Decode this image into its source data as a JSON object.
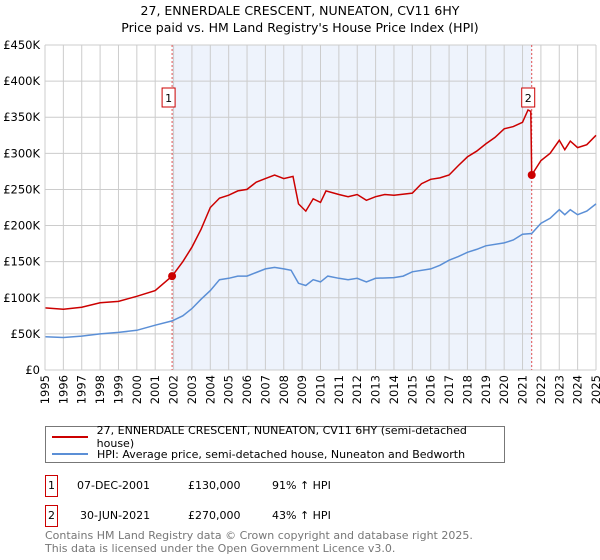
{
  "title": "27, ENNERDALE CRESCENT, NUNEATON, CV11 6HY",
  "subtitle": "Price paid vs. HM Land Registry's House Price Index (HPI)",
  "colors": {
    "property": "#cc0000",
    "hpi": "#5b8fd6",
    "shade": "#eef3fc"
  },
  "chart_data": {
    "type": "line",
    "title": "27, ENNERDALE CRESCENT, NUNEATON, CV11 6HY",
    "subtitle": "Price paid vs. HM Land Registry's House Price Index (HPI)",
    "xlim": [
      1995,
      2025
    ],
    "ylim": [
      0,
      450000
    ],
    "x_ticks": [
      "1995",
      "1996",
      "1997",
      "1998",
      "1999",
      "2000",
      "2001",
      "2002",
      "2003",
      "2004",
      "2005",
      "2006",
      "2007",
      "2008",
      "2009",
      "2010",
      "2011",
      "2012",
      "2013",
      "2014",
      "2015",
      "2016",
      "2017",
      "2018",
      "2019",
      "2020",
      "2021",
      "2022",
      "2023",
      "2024",
      "2025"
    ],
    "y_ticks": [
      {
        "v": 0,
        "l": "£0"
      },
      {
        "v": 50000,
        "l": "£50K"
      },
      {
        "v": 100000,
        "l": "£100K"
      },
      {
        "v": 150000,
        "l": "£150K"
      },
      {
        "v": 200000,
        "l": "£200K"
      },
      {
        "v": 250000,
        "l": "£250K"
      },
      {
        "v": 300000,
        "l": "£300K"
      },
      {
        "v": 350000,
        "l": "£350K"
      },
      {
        "v": 400000,
        "l": "£400K"
      },
      {
        "v": 450000,
        "l": "£450K"
      }
    ],
    "grid": true,
    "shaded_range": [
      2001.92,
      2021.5
    ],
    "series": [
      {
        "name": "27, ENNERDALE CRESCENT, NUNEATON, CV11 6HY (semi-detached house)",
        "color": "#cc0000",
        "x": [
          1995,
          1996,
          1997,
          1998,
          1999,
          2000,
          2001,
          2001.92,
          2002.5,
          2003,
          2003.5,
          2004,
          2004.5,
          2005,
          2005.5,
          2006,
          2006.5,
          2007,
          2007.5,
          2008,
          2008.5,
          2008.8,
          2009.2,
          2009.6,
          2010,
          2010.3,
          2011,
          2011.5,
          2012,
          2012.5,
          2013,
          2013.5,
          2014,
          2015,
          2015.5,
          2016,
          2016.5,
          2017,
          2017.5,
          2018,
          2018.5,
          2019,
          2019.5,
          2020,
          2020.5,
          2021,
          2021.3,
          2021.45,
          2021.5,
          2022,
          2022.5,
          2023,
          2023.3,
          2023.6,
          2024,
          2024.5,
          2025
        ],
        "y": [
          86000,
          84000,
          87000,
          93000,
          95000,
          102000,
          110000,
          130000,
          150000,
          170000,
          195000,
          225000,
          238000,
          242000,
          248000,
          250000,
          260000,
          265000,
          270000,
          265000,
          268000,
          230000,
          220000,
          237000,
          232000,
          248000,
          243000,
          240000,
          243000,
          235000,
          240000,
          243000,
          242000,
          245000,
          258000,
          264000,
          266000,
          270000,
          283000,
          295000,
          303000,
          313000,
          322000,
          334000,
          337000,
          343000,
          360000,
          358000,
          270000,
          290000,
          300000,
          318000,
          305000,
          317000,
          308000,
          312000,
          325000
        ]
      },
      {
        "name": "HPI: Average price, semi-detached house, Nuneaton and Bedworth",
        "color": "#5b8fd6",
        "x": [
          1995,
          1996,
          1997,
          1998,
          1999,
          2000,
          2001,
          2001.92,
          2002.5,
          2003,
          2003.5,
          2004,
          2004.5,
          2005,
          2005.5,
          2006,
          2006.5,
          2007,
          2007.5,
          2008,
          2008.4,
          2008.8,
          2009.2,
          2009.6,
          2010,
          2010.4,
          2011,
          2011.5,
          2012,
          2012.5,
          2013,
          2014,
          2014.5,
          2015,
          2016,
          2016.5,
          2017,
          2017.5,
          2018,
          2018.5,
          2019,
          2020,
          2020.5,
          2021,
          2021.5,
          2022,
          2022.5,
          2023,
          2023.3,
          2023.6,
          2024,
          2024.5,
          2025
        ],
        "y": [
          46000,
          45000,
          47000,
          50000,
          52000,
          55000,
          62000,
          68000,
          75000,
          85000,
          98000,
          110000,
          125000,
          127000,
          130000,
          130000,
          135000,
          140000,
          142000,
          140000,
          138000,
          120000,
          117000,
          125000,
          122000,
          130000,
          127000,
          125000,
          127000,
          122000,
          127000,
          128000,
          130000,
          136000,
          140000,
          145000,
          152000,
          157000,
          163000,
          167000,
          172000,
          176000,
          180000,
          188000,
          189000,
          203000,
          210000,
          222000,
          215000,
          222000,
          215000,
          220000,
          230000
        ]
      }
    ],
    "annotations": [
      {
        "label": "1",
        "x": 2001.92,
        "y": 130000
      },
      {
        "label": "2",
        "x": 2021.5,
        "y": 270000
      }
    ]
  },
  "legend": [
    {
      "label": "27, ENNERDALE CRESCENT, NUNEATON, CV11 6HY (semi-detached house)"
    },
    {
      "label": "HPI: Average price, semi-detached house, Nuneaton and Bedworth"
    }
  ],
  "transactions": [
    {
      "num": "1",
      "date": "07-DEC-2001",
      "price": "£130,000",
      "hpi": "91% ↑ HPI"
    },
    {
      "num": "2",
      "date": "30-JUN-2021",
      "price": "£270,000",
      "hpi": "43% ↑ HPI"
    }
  ],
  "footer": [
    "Contains HM Land Registry data © Crown copyright and database right 2025.",
    "This data is licensed under the Open Government Licence v3.0."
  ]
}
